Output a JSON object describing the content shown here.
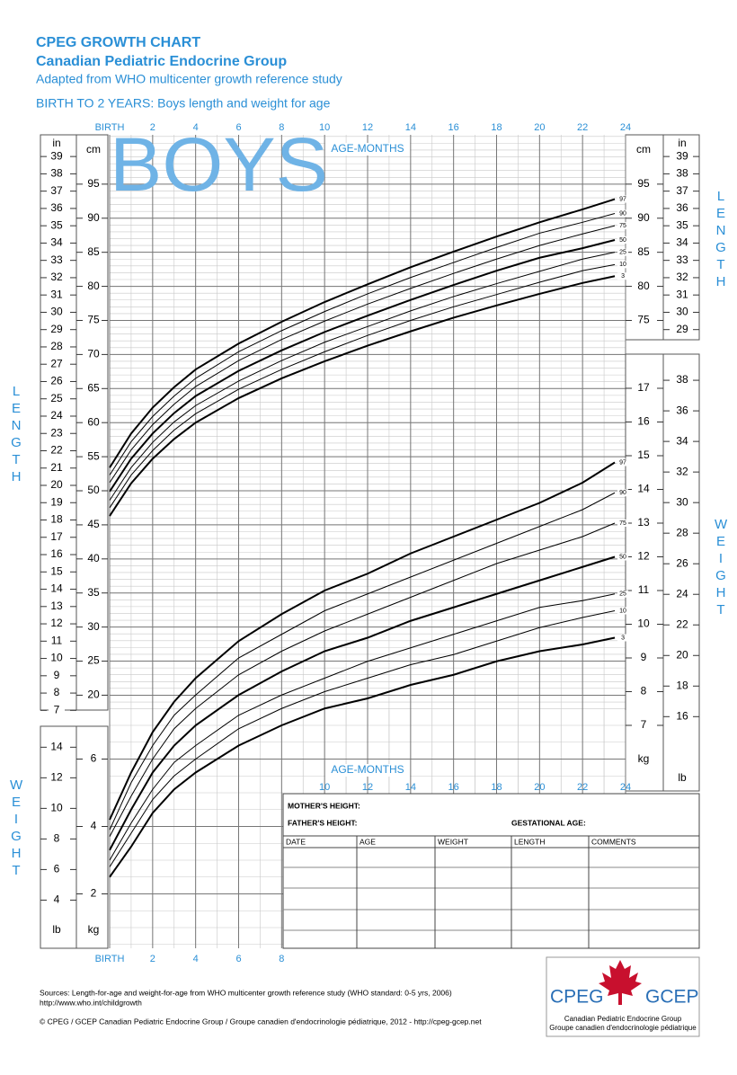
{
  "header": {
    "title": "CPEG GROWTH CHART",
    "subtitle": "Canadian Pediatric Endocrine Group",
    "note": "Adapted from WHO multicenter growth reference study",
    "section": "BIRTH TO 2 YEARS: Boys length and weight for age"
  },
  "watermark": "BOYS",
  "side_labels": {
    "length": "LENGTH",
    "weight": "WEIGHT"
  },
  "chart_data": [
    {
      "type": "line",
      "xlabel": "AGE-MONTHS",
      "y_unit": "cm",
      "y2_unit": "in",
      "x": [
        0,
        1,
        2,
        3,
        4,
        6,
        8,
        10,
        12,
        14,
        16,
        18,
        20,
        22,
        23.5
      ],
      "xlim": [
        0,
        24
      ],
      "xticks": [
        {
          "value": 0,
          "label": "BIRTH"
        },
        2,
        4,
        6,
        8,
        10,
        12,
        14,
        16,
        18,
        20,
        22,
        24
      ],
      "ylim": [
        18,
        102
      ],
      "yticks": [
        20,
        25,
        30,
        35,
        40,
        45,
        50,
        55,
        60,
        65,
        70,
        75,
        80,
        85,
        90,
        95
      ],
      "yticks_right": [
        75,
        80,
        85,
        90,
        95
      ],
      "y2lim": [
        7.09,
        40.16
      ],
      "y2ticks": [
        7,
        8,
        9,
        10,
        11,
        12,
        13,
        14,
        15,
        16,
        17,
        18,
        19,
        20,
        21,
        22,
        23,
        24,
        25,
        26,
        27,
        28,
        29,
        30,
        31,
        32,
        33,
        34,
        35,
        36,
        37,
        38,
        39
      ],
      "y2ticks_right": [
        29,
        30,
        31,
        32,
        33,
        34,
        35,
        36,
        37,
        38,
        39
      ],
      "grid": true,
      "series": [
        {
          "name": "97",
          "color": "#000000",
          "width": 2,
          "values": [
            53.4,
            58.4,
            62.2,
            65.2,
            67.8,
            71.6,
            74.8,
            77.7,
            80.3,
            82.8,
            85.1,
            87.3,
            89.4,
            91.3,
            92.8
          ]
        },
        {
          "name": "90",
          "color": "#000000",
          "width": 1,
          "values": [
            52.3,
            57.2,
            60.9,
            63.9,
            66.5,
            70.4,
            73.5,
            76.3,
            78.9,
            81.3,
            83.5,
            85.7,
            87.8,
            89.4,
            90.7
          ]
        },
        {
          "name": "75",
          "color": "#000000",
          "width": 1,
          "values": [
            51.2,
            56.0,
            59.7,
            62.7,
            65.3,
            69.1,
            72.2,
            74.9,
            77.4,
            79.7,
            81.9,
            84.0,
            86.0,
            87.7,
            88.9
          ]
        },
        {
          "name": "50",
          "color": "#000000",
          "width": 2,
          "values": [
            49.9,
            54.7,
            58.4,
            61.4,
            63.9,
            67.6,
            70.6,
            73.3,
            75.7,
            78.0,
            80.2,
            82.3,
            84.2,
            85.6,
            86.8
          ]
        },
        {
          "name": "25",
          "color": "#000000",
          "width": 1,
          "values": [
            48.6,
            53.4,
            57.1,
            60.1,
            62.5,
            66.1,
            69.1,
            71.8,
            74.1,
            76.4,
            78.5,
            80.4,
            82.2,
            84.0,
            85.0
          ]
        },
        {
          "name": "10",
          "color": "#000000",
          "width": 1,
          "values": [
            47.5,
            52.3,
            55.9,
            58.9,
            61.3,
            64.9,
            67.8,
            70.4,
            72.8,
            75.0,
            77.0,
            78.8,
            80.6,
            82.3,
            83.2
          ]
        },
        {
          "name": "3",
          "color": "#000000",
          "width": 2,
          "values": [
            46.3,
            51.1,
            54.7,
            57.6,
            60.0,
            63.6,
            66.5,
            69.0,
            71.3,
            73.4,
            75.4,
            77.2,
            78.9,
            80.5,
            81.5
          ]
        }
      ]
    },
    {
      "type": "line",
      "xlabel": "AGE-MONTHS",
      "y_unit": "kg",
      "y2_unit": "lb",
      "x": [
        0,
        1,
        2,
        3,
        4,
        6,
        8,
        10,
        12,
        14,
        16,
        18,
        20,
        22,
        23.5
      ],
      "xlim": [
        0,
        24
      ],
      "xticks": [
        {
          "value": 0,
          "label": "BIRTH"
        },
        2,
        4,
        6,
        8,
        10,
        12,
        14,
        16,
        18,
        20,
        22,
        24
      ],
      "ylim": [
        0.4,
        18
      ],
      "yticks": [
        2,
        4,
        6
      ],
      "yticks_right": [
        7,
        8,
        9,
        10,
        11,
        12,
        13,
        14,
        15,
        16,
        17
      ],
      "y2lim": [
        0.88,
        39.68
      ],
      "y2ticks": [
        4,
        6,
        8,
        10,
        12,
        14
      ],
      "y2ticks_right": [
        16,
        18,
        20,
        22,
        24,
        26,
        28,
        30,
        32,
        34,
        36,
        38
      ],
      "grid": true,
      "series": [
        {
          "name": "97",
          "color": "#000000",
          "width": 2,
          "values": [
            4.2,
            5.6,
            6.8,
            7.7,
            8.4,
            9.5,
            10.3,
            11.0,
            11.5,
            12.1,
            12.6,
            13.1,
            13.6,
            14.2,
            14.8
          ]
        },
        {
          "name": "90",
          "color": "#000000",
          "width": 1,
          "values": [
            3.9,
            5.3,
            6.4,
            7.3,
            7.9,
            9.0,
            9.7,
            10.4,
            10.9,
            11.4,
            11.9,
            12.4,
            12.9,
            13.4,
            13.9
          ]
        },
        {
          "name": "75",
          "color": "#000000",
          "width": 1,
          "values": [
            3.7,
            4.9,
            6.0,
            6.9,
            7.5,
            8.5,
            9.2,
            9.8,
            10.3,
            10.8,
            11.3,
            11.8,
            12.2,
            12.6,
            13.0
          ]
        },
        {
          "name": "50",
          "color": "#000000",
          "width": 2,
          "values": [
            3.3,
            4.5,
            5.6,
            6.4,
            7.0,
            7.9,
            8.6,
            9.2,
            9.6,
            10.1,
            10.5,
            10.9,
            11.3,
            11.7,
            12.0
          ]
        },
        {
          "name": "25",
          "color": "#000000",
          "width": 1,
          "values": [
            3.0,
            4.1,
            5.1,
            5.9,
            6.4,
            7.3,
            7.9,
            8.4,
            8.9,
            9.3,
            9.7,
            10.1,
            10.5,
            10.7,
            10.9
          ]
        },
        {
          "name": "10",
          "color": "#000000",
          "width": 1,
          "values": [
            2.8,
            3.8,
            4.8,
            5.5,
            6.0,
            6.9,
            7.5,
            8.0,
            8.4,
            8.8,
            9.1,
            9.5,
            9.9,
            10.2,
            10.4
          ]
        },
        {
          "name": "3",
          "color": "#000000",
          "width": 2,
          "values": [
            2.5,
            3.4,
            4.4,
            5.1,
            5.6,
            6.4,
            7.0,
            7.5,
            7.8,
            8.2,
            8.5,
            8.9,
            9.2,
            9.4,
            9.6
          ]
        }
      ]
    }
  ],
  "record_form": {
    "mother": "MOTHER'S HEIGHT:",
    "father": "FATHER'S HEIGHT:",
    "gestational": "GESTATIONAL AGE:",
    "columns": [
      "DATE",
      "AGE",
      "WEIGHT",
      "LENGTH",
      "COMMENTS"
    ]
  },
  "footer": {
    "sources": "Sources: Length-for-age and weight-for-age from WHO multicenter growth reference study  (WHO standard: 0-5 yrs, 2006)",
    "url": "http://www.who.int/childgrowth",
    "copyright": "© CPEG / GCEP Canadian Pediatric Endocrine Group / Groupe canadien d'endocrinologie pédiatrique, 2012 - http://cpeg-gcep.net"
  },
  "logo": {
    "left": "CPEG",
    "right": "GCEP",
    "line1": "Canadian Pediatric Endocrine Group",
    "line2": "Groupe canadien d'endocrinologie pédiatrique"
  }
}
